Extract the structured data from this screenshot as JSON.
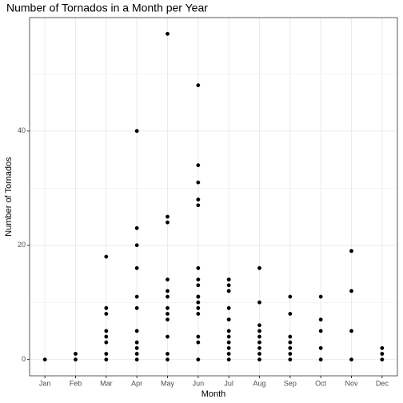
{
  "chart_data": {
    "type": "scatter",
    "title": "Number of Tornados in a Month per Year",
    "xlabel": "Month",
    "ylabel": "Number of Tornados",
    "categories": [
      "Jan",
      "Feb",
      "Mar",
      "Apr",
      "May",
      "Jun",
      "Jul",
      "Aug",
      "Sep",
      "Oct",
      "Nov",
      "Dec"
    ],
    "x": [
      "Jan",
      "Feb",
      "Feb",
      "Mar",
      "Mar",
      "Mar",
      "Mar",
      "Mar",
      "Mar",
      "Mar",
      "Mar",
      "Apr",
      "Apr",
      "Apr",
      "Apr",
      "Apr",
      "Apr",
      "Apr",
      "Apr",
      "Apr",
      "Apr",
      "Apr",
      "May",
      "May",
      "May",
      "May",
      "May",
      "May",
      "May",
      "May",
      "May",
      "May",
      "May",
      "May",
      "Jun",
      "Jun",
      "Jun",
      "Jun",
      "Jun",
      "Jun",
      "Jun",
      "Jun",
      "Jun",
      "Jun",
      "Jun",
      "Jun",
      "Jun",
      "Jun",
      "Jun",
      "Jun",
      "Jul",
      "Jul",
      "Jul",
      "Jul",
      "Jul",
      "Jul",
      "Jul",
      "Jul",
      "Jul",
      "Jul",
      "Jul",
      "Aug",
      "Aug",
      "Aug",
      "Aug",
      "Aug",
      "Aug",
      "Aug",
      "Aug",
      "Aug",
      "Sep",
      "Sep",
      "Sep",
      "Sep",
      "Sep",
      "Sep",
      "Sep",
      "Oct",
      "Oct",
      "Oct",
      "Oct",
      "Oct",
      "Nov",
      "Nov",
      "Nov",
      "Nov",
      "Dec",
      "Dec",
      "Dec"
    ],
    "values": [
      0,
      1,
      0,
      18,
      9,
      8,
      5,
      4,
      3,
      1,
      0,
      40,
      23,
      20,
      16,
      11,
      9,
      5,
      3,
      2,
      1,
      0,
      57,
      25,
      24,
      14,
      12,
      11,
      9,
      8,
      7,
      4,
      1,
      0,
      48,
      34,
      31,
      28,
      27,
      16,
      14,
      13,
      11,
      11,
      10,
      9,
      8,
      4,
      3,
      0,
      14,
      13,
      12,
      9,
      7,
      5,
      4,
      3,
      2,
      1,
      0,
      16,
      10,
      6,
      5,
      4,
      3,
      2,
      1,
      0,
      11,
      8,
      4,
      3,
      2,
      1,
      0,
      11,
      7,
      5,
      2,
      0,
      19,
      12,
      5,
      0,
      2,
      1,
      0
    ],
    "color": "#000000",
    "ylim": [
      -2.85,
      59.85
    ],
    "yticks": [
      0,
      20,
      40
    ],
    "minor_yticks": [
      10,
      30,
      50
    ],
    "grid": true
  }
}
